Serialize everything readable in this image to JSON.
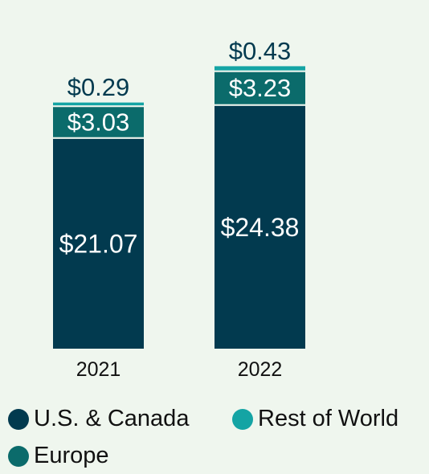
{
  "chart_data": {
    "type": "bar",
    "stacked": true,
    "categories": [
      "2021",
      "2022"
    ],
    "series": [
      {
        "name": "U.S. & Canada",
        "values": [
          21.07,
          24.38
        ],
        "labels": [
          "$21.07",
          "$24.38"
        ],
        "color": "#023a4f"
      },
      {
        "name": "Europe",
        "values": [
          3.03,
          3.23
        ],
        "labels": [
          "$3.03",
          "$3.23"
        ],
        "color": "#0b6b6b"
      },
      {
        "name": "Rest of World",
        "values": [
          0.29,
          0.43
        ],
        "labels": [
          "$0.29",
          "$0.43"
        ],
        "color": "#14a4a4"
      }
    ],
    "legend_position": "bottom",
    "grid": false
  }
}
